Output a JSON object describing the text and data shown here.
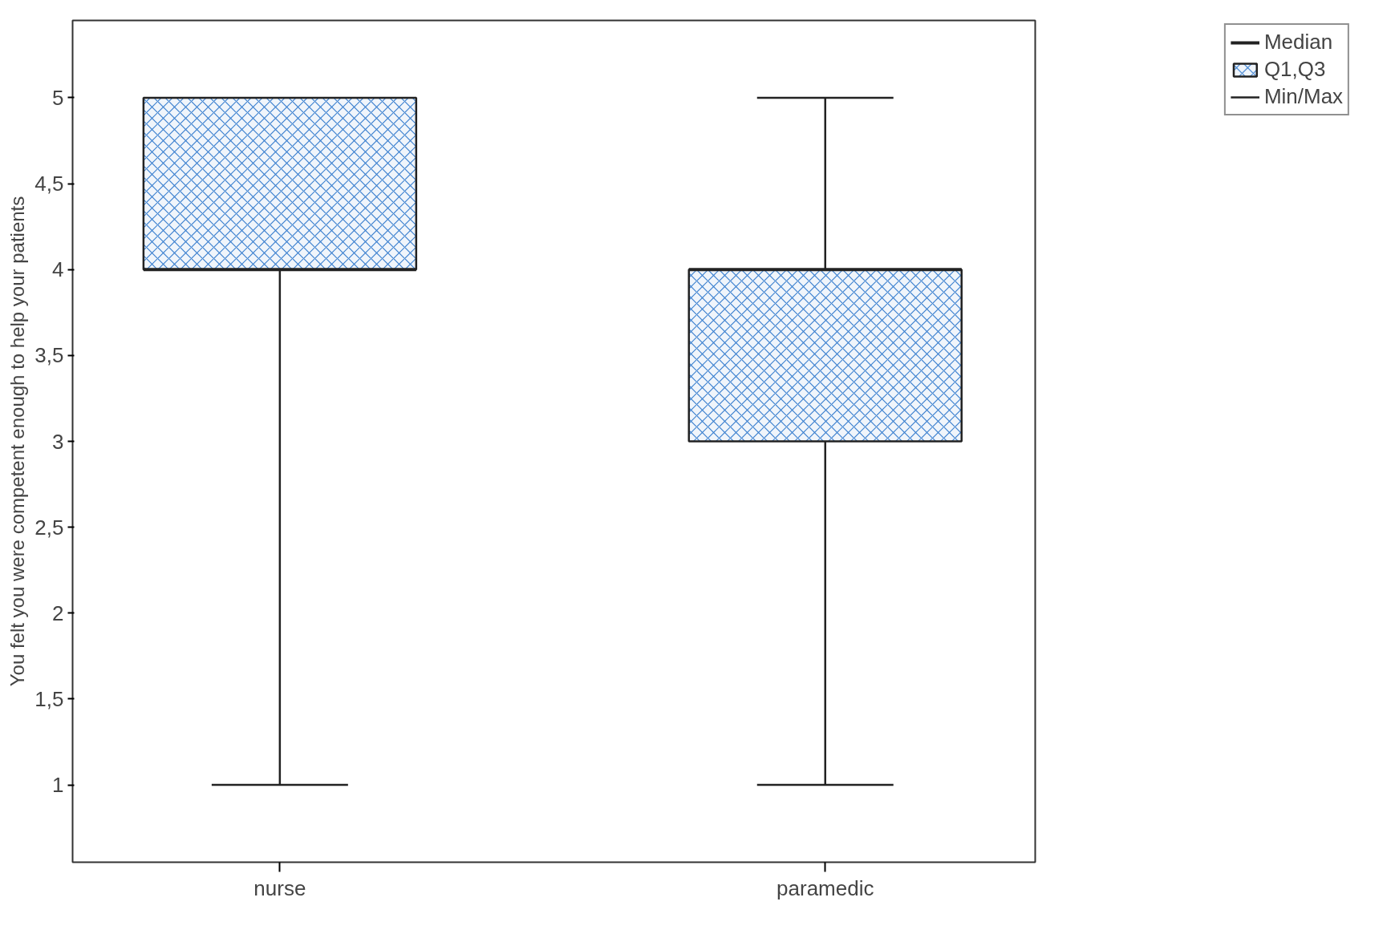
{
  "chart_data": {
    "type": "box",
    "ylabel": "You felt you were competent enough to help your patients",
    "categories": [
      "nurse",
      "paramedic"
    ],
    "series": [
      {
        "name": "Q1,Q3",
        "color": "#3a7fcf",
        "boxes": [
          {
            "low": 1,
            "q1": 4,
            "median": 4,
            "q3": 5,
            "high": 5
          },
          {
            "low": 1,
            "q1": 3,
            "median": 4,
            "q3": 4,
            "high": 5
          }
        ]
      }
    ],
    "ylim": [
      0.55,
      5.45
    ],
    "yticks": [
      1,
      {
        "value": 1.5,
        "label": "1,5"
      },
      2,
      {
        "value": 2.5,
        "label": "2,5"
      },
      3,
      {
        "value": 3.5,
        "label": "3,5"
      },
      4,
      {
        "value": 4.5,
        "label": "4,5"
      },
      5
    ],
    "annotations": [
      "Median",
      "Min/Max"
    ],
    "legend": "top right",
    "grid": false
  }
}
